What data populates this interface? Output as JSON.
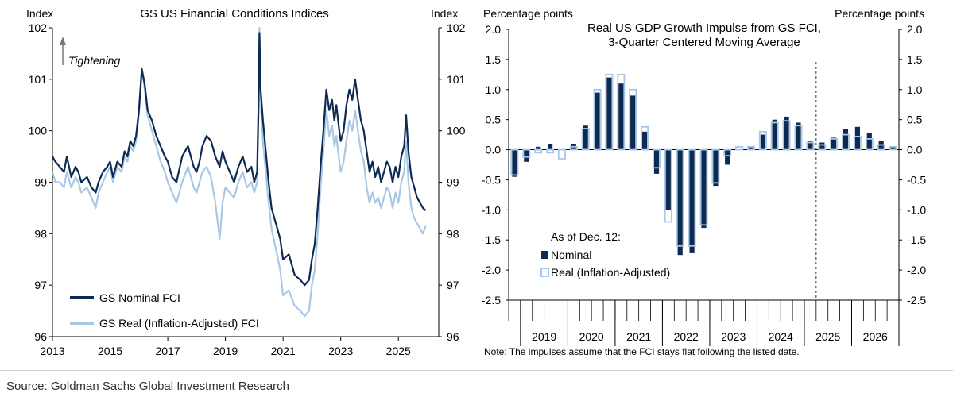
{
  "colors": {
    "nominal": "#0d2a52",
    "real": "#a9c8e6",
    "axis": "#000000"
  },
  "source": "Source: Goldman Sachs Global Investment Research",
  "chart_data": [
    {
      "type": "line",
      "title": "GS US Financial Conditions Indices",
      "ylabel_left": "Index",
      "ylabel_right": "Index",
      "annotation": "Tightening",
      "ylim": [
        96,
        102
      ],
      "xlim": [
        2013,
        2026.4
      ],
      "xticks": [
        "2013",
        "2015",
        "2017",
        "2019",
        "2021",
        "2023",
        "2025"
      ],
      "yticks": [
        "96",
        "97",
        "98",
        "99",
        "100",
        "101",
        "102"
      ],
      "legend": [
        "GS Nominal FCI",
        "GS Real (Inflation-Adjusted) FCI"
      ],
      "series": [
        {
          "name": "GS Nominal FCI",
          "x": [
            2013.0,
            2013.1,
            2013.25,
            2013.4,
            2013.5,
            2013.65,
            2013.8,
            2013.9,
            2014.0,
            2014.2,
            2014.35,
            2014.5,
            2014.6,
            2014.75,
            2014.9,
            2015.0,
            2015.1,
            2015.25,
            2015.4,
            2015.5,
            2015.6,
            2015.7,
            2015.8,
            2015.9,
            2016.0,
            2016.05,
            2016.1,
            2016.2,
            2016.3,
            2016.45,
            2016.6,
            2016.75,
            2016.9,
            2017.0,
            2017.15,
            2017.3,
            2017.5,
            2017.7,
            2017.9,
            2018.0,
            2018.1,
            2018.2,
            2018.35,
            2018.5,
            2018.65,
            2018.8,
            2018.9,
            2019.0,
            2019.15,
            2019.3,
            2019.45,
            2019.6,
            2019.75,
            2019.9,
            2020.0,
            2020.1,
            2020.15,
            2020.18,
            2020.22,
            2020.3,
            2020.4,
            2020.5,
            2020.6,
            2020.75,
            2020.9,
            2021.0,
            2021.2,
            2021.4,
            2021.6,
            2021.75,
            2021.9,
            2022.0,
            2022.1,
            2022.2,
            2022.3,
            2022.4,
            2022.5,
            2022.6,
            2022.7,
            2022.78,
            2022.85,
            2022.95,
            2023.0,
            2023.1,
            2023.2,
            2023.3,
            2023.4,
            2023.5,
            2023.6,
            2023.7,
            2023.8,
            2023.9,
            2024.0,
            2024.1,
            2024.2,
            2024.3,
            2024.4,
            2024.5,
            2024.6,
            2024.7,
            2024.8,
            2024.9,
            2025.0,
            2025.1,
            2025.2,
            2025.27,
            2025.35,
            2025.45,
            2025.55,
            2025.65,
            2025.75,
            2025.85,
            2025.95
          ],
          "values": [
            99.5,
            99.4,
            99.3,
            99.2,
            99.5,
            99.1,
            99.3,
            99.2,
            99.0,
            99.1,
            98.9,
            98.8,
            99.0,
            99.2,
            99.3,
            99.4,
            99.1,
            99.4,
            99.3,
            99.6,
            99.5,
            99.8,
            99.7,
            99.9,
            100.4,
            100.8,
            101.2,
            100.9,
            100.4,
            100.2,
            99.9,
            99.7,
            99.5,
            99.4,
            99.1,
            99.0,
            99.5,
            99.7,
            99.3,
            99.2,
            99.4,
            99.7,
            99.9,
            99.8,
            99.5,
            99.3,
            99.6,
            99.4,
            99.2,
            99.0,
            99.3,
            99.5,
            99.2,
            99.3,
            99.0,
            99.2,
            100.5,
            101.9,
            100.8,
            100.2,
            99.6,
            99.0,
            98.5,
            98.2,
            97.9,
            97.5,
            97.6,
            97.2,
            97.1,
            97.0,
            97.1,
            97.5,
            97.8,
            98.5,
            99.3,
            100.0,
            100.8,
            100.4,
            100.6,
            100.2,
            100.5,
            100.0,
            99.8,
            100.0,
            100.5,
            100.8,
            100.6,
            101.0,
            100.6,
            100.2,
            100.0,
            99.6,
            99.2,
            99.4,
            99.1,
            99.3,
            99.0,
            99.2,
            99.4,
            99.3,
            99.0,
            99.3,
            99.1,
            99.5,
            99.7,
            100.3,
            99.6,
            99.1,
            98.9,
            98.7,
            98.6,
            98.5,
            98.45
          ]
        },
        {
          "name": "GS Real (Inflation-Adjusted) FCI",
          "x": [
            2013.0,
            2013.1,
            2013.25,
            2013.4,
            2013.5,
            2013.65,
            2013.8,
            2013.9,
            2014.0,
            2014.2,
            2014.35,
            2014.5,
            2014.6,
            2014.75,
            2014.9,
            2015.0,
            2015.1,
            2015.25,
            2015.4,
            2015.5,
            2015.6,
            2015.7,
            2015.8,
            2015.9,
            2016.0,
            2016.05,
            2016.1,
            2016.2,
            2016.3,
            2016.45,
            2016.6,
            2016.75,
            2016.9,
            2017.0,
            2017.15,
            2017.3,
            2017.5,
            2017.7,
            2017.9,
            2018.0,
            2018.1,
            2018.2,
            2018.35,
            2018.5,
            2018.65,
            2018.8,
            2018.9,
            2019.0,
            2019.15,
            2019.3,
            2019.45,
            2019.6,
            2019.75,
            2019.9,
            2020.0,
            2020.1,
            2020.15,
            2020.18,
            2020.22,
            2020.3,
            2020.4,
            2020.5,
            2020.6,
            2020.75,
            2020.9,
            2021.0,
            2021.2,
            2021.4,
            2021.6,
            2021.75,
            2021.9,
            2022.0,
            2022.1,
            2022.2,
            2022.3,
            2022.4,
            2022.5,
            2022.6,
            2022.7,
            2022.78,
            2022.85,
            2022.95,
            2023.0,
            2023.1,
            2023.2,
            2023.3,
            2023.4,
            2023.5,
            2023.6,
            2023.7,
            2023.8,
            2023.9,
            2024.0,
            2024.1,
            2024.2,
            2024.3,
            2024.4,
            2024.5,
            2024.6,
            2024.7,
            2024.8,
            2024.9,
            2025.0,
            2025.1,
            2025.2,
            2025.27,
            2025.35,
            2025.45,
            2025.55,
            2025.65,
            2025.75,
            2025.85,
            2025.95
          ],
          "values": [
            99.2,
            99.0,
            99.0,
            98.9,
            99.2,
            98.9,
            99.1,
            99.0,
            98.8,
            98.9,
            98.7,
            98.5,
            98.8,
            99.0,
            99.2,
            99.3,
            99.0,
            99.3,
            99.2,
            99.5,
            99.4,
            99.7,
            99.6,
            99.8,
            100.3,
            100.7,
            101.2,
            100.8,
            100.3,
            100.0,
            99.7,
            99.4,
            99.2,
            99.0,
            98.8,
            98.6,
            99.0,
            99.3,
            98.9,
            98.8,
            99.0,
            99.2,
            99.3,
            99.1,
            98.6,
            97.9,
            98.6,
            98.9,
            98.8,
            98.7,
            99.0,
            99.2,
            98.9,
            99.0,
            98.8,
            99.0,
            100.6,
            102.0,
            100.6,
            99.8,
            99.2,
            98.6,
            98.1,
            97.7,
            97.3,
            96.8,
            96.9,
            96.6,
            96.5,
            96.4,
            96.5,
            97.0,
            97.3,
            98.0,
            98.9,
            99.6,
            100.4,
            99.9,
            100.1,
            99.7,
            99.9,
            99.4,
            99.2,
            99.4,
            99.8,
            100.2,
            100.0,
            100.4,
            100.0,
            99.6,
            99.4,
            98.9,
            98.6,
            98.8,
            98.6,
            98.7,
            98.5,
            98.7,
            98.9,
            98.8,
            98.5,
            98.8,
            98.6,
            99.0,
            99.2,
            99.8,
            99.0,
            98.5,
            98.3,
            98.2,
            98.1,
            98.0,
            98.15
          ]
        }
      ]
    },
    {
      "type": "bar",
      "title": "Real US GDP Growth Impulse from GS FCI,",
      "subtitle": "3-Quarter Centered Moving Average",
      "ylabel_left": "Percentage points",
      "ylabel_right": "Percentage points",
      "ylim": [
        -2.5,
        2.0
      ],
      "yticks": [
        "2.0",
        "1.5",
        "1.0",
        "0.5",
        "0.0",
        "-0.5",
        "-1.0",
        "-1.5",
        "-2.0",
        "-2.5"
      ],
      "years": [
        "2019",
        "2020",
        "2021",
        "2022",
        "2023",
        "2024",
        "2025",
        "2026"
      ],
      "quarters_per_year": 4,
      "dashed_line_after_quarter": 26,
      "legend_title": "As of Dec. 12:",
      "legend": [
        "Nominal",
        "Real (Inflation-Adjusted)"
      ],
      "note": "Note: The impulses assume that the FCI stays flat following the listed date.",
      "series": [
        {
          "name": "Nominal",
          "values": [
            -0.45,
            -0.2,
            0.05,
            0.1,
            0.0,
            0.1,
            0.4,
            0.95,
            1.2,
            1.1,
            0.9,
            0.3,
            -0.4,
            -1.0,
            -1.75,
            -1.72,
            -1.3,
            -0.6,
            -0.25,
            0.0,
            0.05,
            0.25,
            0.5,
            0.55,
            0.45,
            0.15,
            0.12,
            0.2,
            0.35,
            0.38,
            0.28,
            0.15,
            0.05
          ]
        },
        {
          "name": "Real (Inflation-Adjusted)",
          "values": [
            -0.42,
            -0.12,
            -0.05,
            -0.05,
            -0.15,
            0.05,
            0.35,
            1.0,
            1.25,
            1.25,
            1.0,
            0.38,
            -0.3,
            -1.2,
            -1.6,
            -1.6,
            -1.25,
            -0.55,
            -0.1,
            0.05,
            0.05,
            0.3,
            0.45,
            0.48,
            0.4,
            0.12,
            0.08,
            0.18,
            0.25,
            0.22,
            0.18,
            0.08,
            0.05
          ]
        }
      ]
    }
  ]
}
